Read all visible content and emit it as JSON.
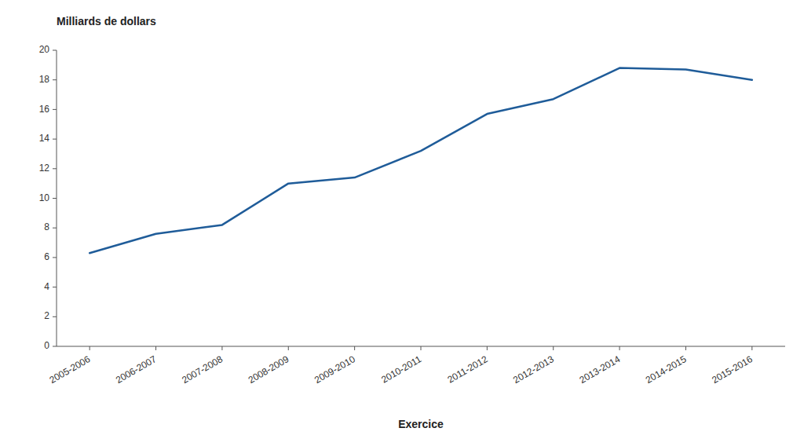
{
  "chart_data": {
    "type": "line",
    "x_label": "Exercice",
    "y_label": "Milliards de dollars",
    "categories": [
      "2005-2006",
      "2006-2007",
      "2007-2008",
      "2008-2009",
      "2009-2010",
      "2010-2011",
      "2011-2012",
      "2012-2013",
      "2013-2014",
      "2014-2015",
      "2015-2016"
    ],
    "values": [
      6.3,
      7.6,
      8.2,
      11.0,
      11.4,
      13.2,
      15.7,
      16.7,
      18.8,
      18.7,
      18.0
    ],
    "color": "#1F5C99",
    "ylim": [
      0,
      20
    ],
    "yticks": [
      0,
      2,
      4,
      6,
      8,
      10,
      12,
      14,
      16,
      18,
      20
    ],
    "grid": false
  }
}
